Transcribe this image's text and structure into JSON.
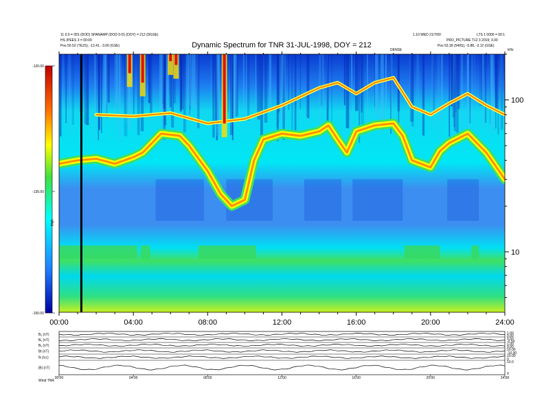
{
  "chart_data": {
    "type": "heatmap",
    "title": "Dynamic Spectrum for TNR 31-JUL-1998, DOY = 212",
    "header_left": [
      "11 0.0 = IDS (DOD) SPANAMP (DOD 0-D) (DOY) = 212 (DGSE)",
      "HS (PEES 3 = 00:00",
      "Pos 50.52 (TE2S), -12.41, -3.00 (GSE)"
    ],
    "header_right": [
      "1.10 WED 21/7/00",
      "LTS 1 0000 = 00:1",
      "PRO_PICTURE T12 3 2019; 3.00",
      "Pos 53.39 (549S), -5.88, -3.12 (GSE)"
    ],
    "header_mid": "DENSE",
    "x_ticks": [
      "00:00",
      "04:00",
      "08:00",
      "12:00",
      "16:00",
      "20:00",
      "24:00"
    ],
    "y_unit": "kHz",
    "y_ticks": [
      "100",
      "10"
    ],
    "y_scale": "log",
    "y_range": [
      4,
      200
    ],
    "colorbar_ticks": [
      "-120.00",
      "-135.00",
      "-150.00"
    ],
    "colorbar_label": "TNR",
    "cursor_time": "01:12",
    "plasma_line": [
      {
        "t": 0.0,
        "f": 38
      },
      {
        "t": 1.0,
        "f": 40
      },
      {
        "t": 2.0,
        "f": 41
      },
      {
        "t": 3.0,
        "f": 38
      },
      {
        "t": 4.0,
        "f": 42
      },
      {
        "t": 4.5,
        "f": 45
      },
      {
        "t": 5.0,
        "f": 52
      },
      {
        "t": 5.5,
        "f": 60
      },
      {
        "t": 6.5,
        "f": 58
      },
      {
        "t": 7.0,
        "f": 50
      },
      {
        "t": 8.0,
        "f": 34
      },
      {
        "t": 8.7,
        "f": 24
      },
      {
        "t": 9.3,
        "f": 20
      },
      {
        "t": 10.0,
        "f": 22
      },
      {
        "t": 10.5,
        "f": 40
      },
      {
        "t": 11.0,
        "f": 55
      },
      {
        "t": 12.0,
        "f": 60
      },
      {
        "t": 13.0,
        "f": 58
      },
      {
        "t": 14.0,
        "f": 62
      },
      {
        "t": 14.5,
        "f": 68
      },
      {
        "t": 15.0,
        "f": 55
      },
      {
        "t": 15.5,
        "f": 45
      },
      {
        "t": 16.0,
        "f": 62
      },
      {
        "t": 17.0,
        "f": 68
      },
      {
        "t": 18.0,
        "f": 70
      },
      {
        "t": 18.5,
        "f": 58
      },
      {
        "t": 19.0,
        "f": 40
      },
      {
        "t": 20.0,
        "f": 36
      },
      {
        "t": 20.5,
        "f": 46
      },
      {
        "t": 21.0,
        "f": 52
      },
      {
        "t": 22.0,
        "f": 60
      },
      {
        "t": 23.0,
        "f": 45
      },
      {
        "t": 24.0,
        "f": 30
      }
    ],
    "harmonic_line": [
      {
        "t": 2.0,
        "f": 80
      },
      {
        "t": 4.0,
        "f": 78
      },
      {
        "t": 6.0,
        "f": 82
      },
      {
        "t": 8.0,
        "f": 70
      },
      {
        "t": 10.0,
        "f": 75
      },
      {
        "t": 12.0,
        "f": 92
      },
      {
        "t": 14.0,
        "f": 120
      },
      {
        "t": 15.0,
        "f": 130
      },
      {
        "t": 16.0,
        "f": 110
      },
      {
        "t": 17.0,
        "f": 130
      },
      {
        "t": 18.0,
        "f": 140
      },
      {
        "t": 19.0,
        "f": 90
      },
      {
        "t": 20.0,
        "f": 80
      },
      {
        "t": 21.0,
        "f": 95
      },
      {
        "t": 22.0,
        "f": 110
      },
      {
        "t": 23.0,
        "f": 92
      },
      {
        "t": 24.0,
        "f": 80
      }
    ],
    "bursts": [
      {
        "t": 3.8,
        "f": 150
      },
      {
        "t": 4.5,
        "f": 130
      },
      {
        "t": 6.0,
        "f": 180
      },
      {
        "t": 6.3,
        "f": 170
      },
      {
        "t": 8.9,
        "f": 70
      }
    ],
    "panels": [
      {
        "label": "Bₓ (nT)",
        "right": [
          "1.00",
          "0.00"
        ]
      },
      {
        "label": "Bᵧ (nT)",
        "right": [
          "0.50",
          "-0.50"
        ]
      },
      {
        "label": "Bₓ (nT)",
        "right": [
          "1.00",
          "0.00"
        ]
      },
      {
        "label": "Bt (nT)",
        "right": [
          "10.00",
          "-10.00"
        ]
      },
      {
        "label": "N (/cc)",
        "right": [
          "10.00",
          "0"
        ]
      },
      {
        "label": "|B| (nT)",
        "right": [
          "10.0",
          "0"
        ]
      }
    ],
    "bottom_x_ticks": [
      "00:00",
      "04:00",
      "08:00",
      "12:00",
      "16:00",
      "20:00",
      "24:00"
    ],
    "bottom_left_label": "Wind TNR"
  }
}
